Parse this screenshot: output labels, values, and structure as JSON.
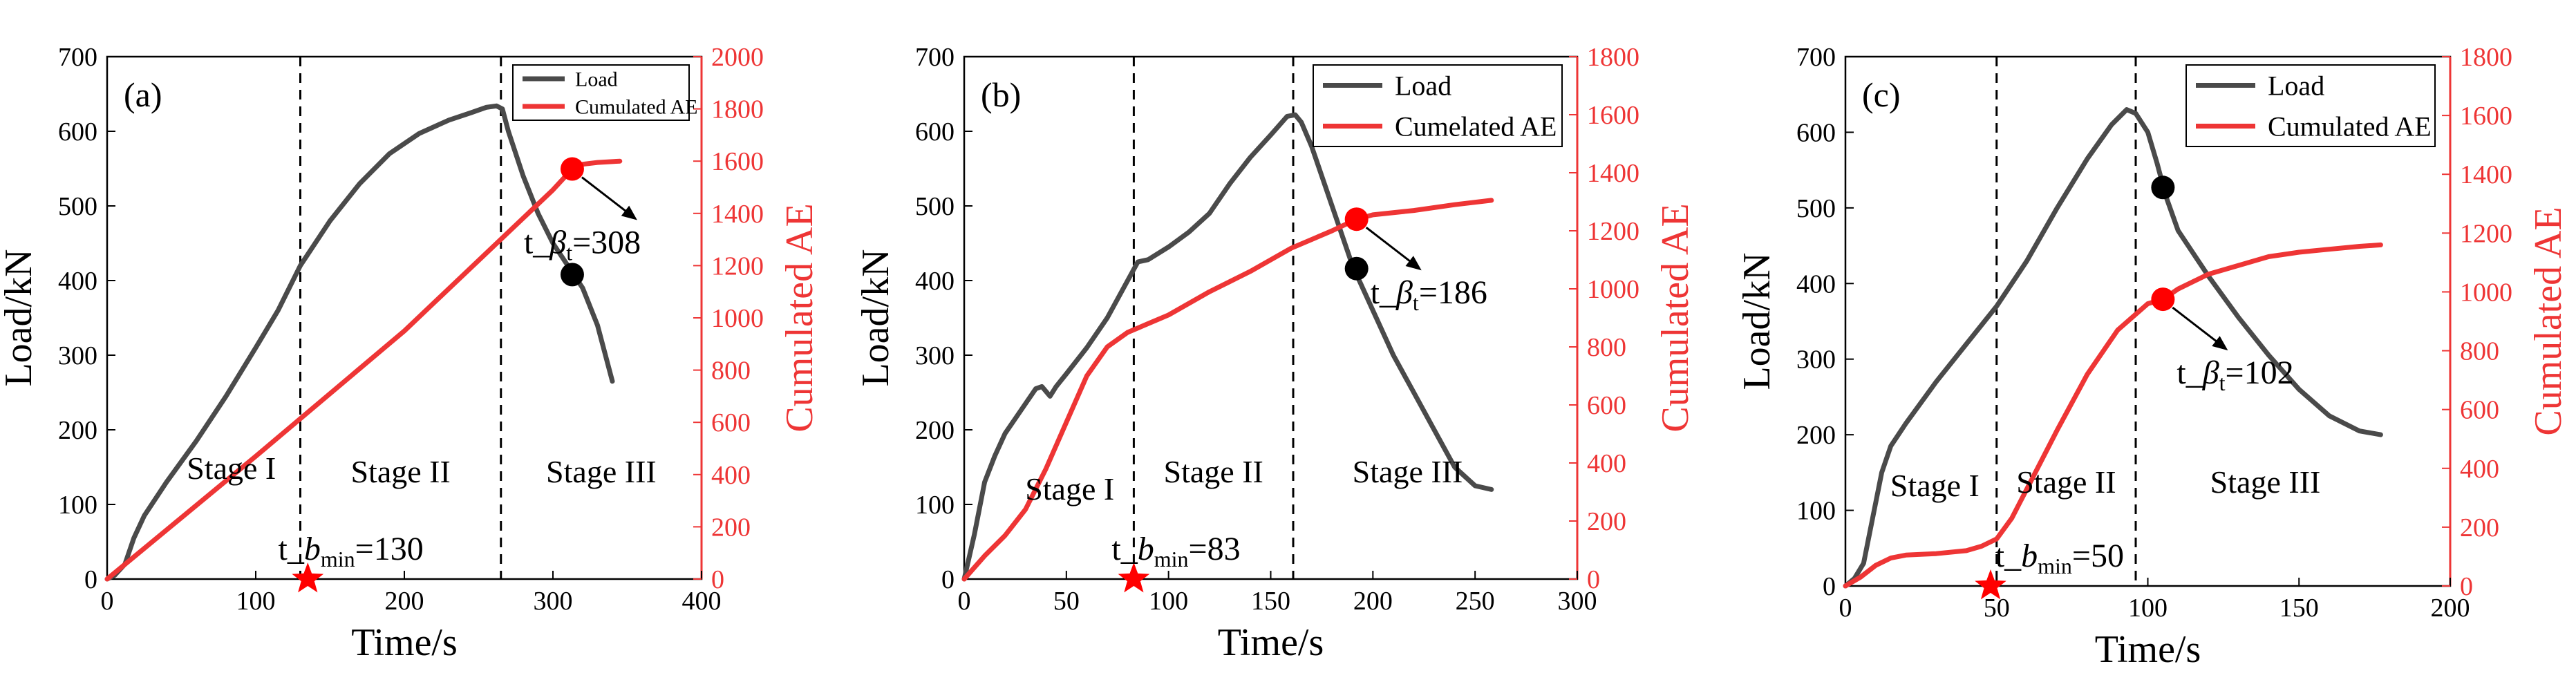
{
  "colors": {
    "load": "#4a4a4a",
    "ae": "#ee3535",
    "marker": "#ff0000"
  },
  "chart_data": [
    {
      "type": "line",
      "panel_label": "(a)",
      "xlabel": "Time/s",
      "ylabel_left": "Load/kN",
      "ylabel_right": "Cumulated AE",
      "xlim": [
        0,
        400
      ],
      "xticks": [
        0,
        100,
        200,
        300,
        400
      ],
      "ylim_left": [
        0,
        700
      ],
      "yticks_left": [
        0,
        100,
        200,
        300,
        400,
        500,
        600,
        700
      ],
      "ylim_right": [
        0,
        2000
      ],
      "yticks_right": [
        0,
        200,
        400,
        600,
        800,
        1000,
        1200,
        1400,
        1600,
        1800,
        2000
      ],
      "legend": {
        "position": "top-right",
        "entries": [
          "Load",
          "Cumulated AE"
        ]
      },
      "series": [
        {
          "name": "Load",
          "axis": "left",
          "x": [
            0,
            5,
            12,
            18,
            25,
            40,
            60,
            80,
            100,
            115,
            130,
            150,
            170,
            190,
            210,
            230,
            245,
            255,
            262,
            266,
            270,
            280,
            290,
            300,
            310,
            320,
            330,
            340
          ],
          "y": [
            0,
            5,
            20,
            55,
            85,
            130,
            185,
            245,
            310,
            360,
            420,
            480,
            530,
            570,
            597,
            615,
            625,
            632,
            634,
            630,
            600,
            540,
            490,
            450,
            420,
            390,
            340,
            265
          ]
        },
        {
          "name": "Cumulated AE",
          "axis": "right",
          "x": [
            0,
            100,
            200,
            300,
            313,
            320,
            330,
            345
          ],
          "y": [
            0,
            470,
            950,
            1490,
            1570,
            1588,
            1595,
            1600
          ]
        }
      ],
      "markers": [
        {
          "series": "Load",
          "x": 313,
          "y": 408,
          "color": "black"
        },
        {
          "series": "Cumulated AE",
          "x": 313,
          "y": 1570,
          "color": "red"
        },
        {
          "type": "star",
          "x": 135,
          "y": 0,
          "color": "red"
        }
      ],
      "vlines": [
        130,
        265
      ],
      "stage_labels": [
        "Stage I",
        "Stage  II",
        "Stage  III"
      ],
      "annotations": {
        "t_beta": {
          "prefix": "t_",
          "symbol": "β",
          "sub": "t",
          "value": "=308"
        },
        "t_bmin": {
          "prefix": "t_",
          "symbol": "b",
          "sub": "min",
          "value": "=130"
        }
      }
    },
    {
      "type": "line",
      "panel_label": "(b)",
      "xlabel": "Time/s",
      "ylabel_left": "Load/kN",
      "ylabel_right": "Cumulated AE",
      "xlim": [
        0,
        300
      ],
      "xticks": [
        0,
        50,
        100,
        150,
        200,
        250,
        300
      ],
      "ylim_left": [
        0,
        700
      ],
      "yticks_left": [
        0,
        100,
        200,
        300,
        400,
        500,
        600,
        700
      ],
      "ylim_right": [
        0,
        1800
      ],
      "yticks_right": [
        0,
        200,
        400,
        600,
        800,
        1000,
        1200,
        1400,
        1600,
        1800
      ],
      "legend": {
        "position": "top-right",
        "entries": [
          "Load",
          "Cumelated AE"
        ]
      },
      "series": [
        {
          "name": "Load",
          "axis": "left",
          "x": [
            0,
            5,
            10,
            15,
            20,
            25,
            30,
            35,
            38,
            42,
            45,
            50,
            60,
            70,
            80,
            85,
            90,
            100,
            110,
            120,
            130,
            140,
            150,
            158,
            162,
            165,
            170,
            180,
            190,
            200,
            210,
            220,
            230,
            240,
            250,
            258
          ],
          "y": [
            0,
            60,
            130,
            165,
            195,
            215,
            235,
            255,
            258,
            245,
            258,
            275,
            310,
            350,
            400,
            425,
            428,
            445,
            465,
            490,
            530,
            565,
            595,
            620,
            622,
            612,
            580,
            500,
            420,
            360,
            300,
            250,
            200,
            150,
            125,
            120
          ]
        },
        {
          "name": "Cumulated AE",
          "axis": "right",
          "x": [
            0,
            10,
            20,
            30,
            40,
            50,
            60,
            70,
            80,
            90,
            100,
            120,
            140,
            160,
            180,
            192,
            200,
            220,
            240,
            258
          ],
          "y": [
            0,
            80,
            150,
            240,
            380,
            540,
            700,
            800,
            850,
            880,
            910,
            990,
            1060,
            1140,
            1200,
            1240,
            1255,
            1270,
            1290,
            1305
          ]
        }
      ],
      "markers": [
        {
          "series": "Load",
          "x": 192,
          "y": 416,
          "color": "black"
        },
        {
          "series": "Cumulated AE",
          "x": 192,
          "y": 1240,
          "color": "red"
        },
        {
          "type": "star",
          "x": 83,
          "y": 0,
          "color": "red"
        }
      ],
      "vlines": [
        83,
        161
      ],
      "stage_labels": [
        "Stage I",
        "Stage  II",
        "Stage  III"
      ],
      "annotations": {
        "t_beta": {
          "prefix": "t_",
          "symbol": "β",
          "sub": "t",
          "value": "=186"
        },
        "t_bmin": {
          "prefix": "t_",
          "symbol": "b",
          "sub": "min",
          "value": "=83"
        }
      }
    },
    {
      "type": "line",
      "panel_label": "(c)",
      "xlabel": "Time/s",
      "ylabel_left": "Load/kN",
      "ylabel_right": "Cumulated AE",
      "xlim": [
        0,
        200
      ],
      "xticks": [
        0,
        50,
        100,
        150,
        200
      ],
      "ylim_left": [
        0,
        700
      ],
      "yticks_left": [
        0,
        100,
        200,
        300,
        400,
        500,
        600,
        700
      ],
      "ylim_right": [
        0,
        1800
      ],
      "yticks_right": [
        0,
        200,
        400,
        600,
        800,
        1000,
        1200,
        1400,
        1600,
        1800
      ],
      "legend": {
        "position": "top-right",
        "entries": [
          "Load",
          "Cumulated AE"
        ]
      },
      "series": [
        {
          "name": "Load",
          "axis": "left",
          "x": [
            0,
            3,
            6,
            9,
            12,
            15,
            20,
            30,
            40,
            50,
            60,
            70,
            80,
            88,
            93,
            96,
            100,
            103,
            106,
            110,
            120,
            130,
            140,
            150,
            160,
            170,
            177
          ],
          "y": [
            0,
            10,
            30,
            90,
            150,
            185,
            215,
            270,
            320,
            370,
            430,
            500,
            565,
            610,
            630,
            625,
            600,
            560,
            515,
            470,
            410,
            355,
            305,
            260,
            225,
            205,
            200
          ]
        },
        {
          "name": "Cumulated AE",
          "axis": "right",
          "x": [
            0,
            5,
            10,
            15,
            20,
            30,
            40,
            45,
            50,
            55,
            60,
            70,
            80,
            90,
            100,
            105,
            110,
            120,
            130,
            140,
            150,
            160,
            170,
            177
          ],
          "y": [
            0,
            30,
            70,
            95,
            105,
            110,
            120,
            135,
            160,
            230,
            330,
            530,
            720,
            870,
            960,
            975,
            1010,
            1060,
            1090,
            1120,
            1135,
            1145,
            1155,
            1160
          ]
        }
      ],
      "markers": [
        {
          "series": "Load",
          "x": 105,
          "y": 527,
          "color": "black"
        },
        {
          "series": "Cumulated AE",
          "x": 105,
          "y": 975,
          "color": "red"
        },
        {
          "type": "star",
          "x": 48,
          "y": 0,
          "color": "red"
        }
      ],
      "vlines": [
        50,
        96
      ],
      "stage_labels": [
        "Stage I",
        "Stage  II",
        "Stage  III"
      ],
      "annotations": {
        "t_beta": {
          "prefix": "t_",
          "symbol": "β",
          "sub": "t",
          "value": "=102"
        },
        "t_bmin": {
          "prefix": "t_",
          "symbol": "b",
          "sub": "min",
          "value": "=50"
        }
      }
    }
  ]
}
